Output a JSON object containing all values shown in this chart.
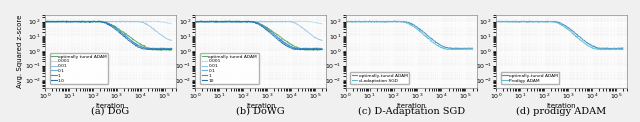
{
  "fig_width": 6.4,
  "fig_height": 1.22,
  "dpi": 100,
  "subplots": [
    {
      "title": "(a) DoG",
      "legend_entries": [
        [
          "optimally tuned ADAM",
          "#5aab6b"
        ],
        [
          "0.001",
          "#b8d9f0"
        ],
        [
          "0.01",
          "#93c5e8"
        ],
        [
          "0.1",
          "#6aadd8"
        ],
        [
          "1",
          "#4090c4"
        ],
        [
          "1.0",
          "#2070b0"
        ]
      ],
      "x_label": "Iteration",
      "y_label": "Avg. Squared z-score",
      "x_lim": [
        1,
        300000
      ],
      "y_lim": [
        0.003,
        300
      ]
    },
    {
      "title": "(b) DoWG",
      "legend_entries": [
        [
          "optimally tuned ADAM",
          "#5aab6b"
        ],
        [
          "0.001",
          "#b8d9f0"
        ],
        [
          "0.01",
          "#93c5e8"
        ],
        [
          "0.1",
          "#6aadd8"
        ],
        [
          "1",
          "#4090c4"
        ],
        [
          "10",
          "#2070b0"
        ]
      ],
      "x_label": "Iteration",
      "y_label": "Avg. Squared z-score",
      "x_lim": [
        1,
        300000
      ],
      "y_lim": [
        0.003,
        300
      ]
    },
    {
      "title": "(c) D-Adaptation SGD",
      "legend_entries": [
        [
          "optimally-tuned ADAM",
          "#4090c4"
        ],
        [
          "d-adaptation SGD",
          "#5bbccc"
        ]
      ],
      "x_label": "Iteration",
      "y_label": "Avg. Squared z-score",
      "x_lim": [
        1,
        300000
      ],
      "y_lim": [
        0.003,
        300
      ]
    },
    {
      "title": "(d) prodigy ADAM",
      "legend_entries": [
        [
          "optimally-tuned ADAM",
          "#4090c4"
        ],
        [
          "Prodigy ADAM",
          "#5bbccc"
        ]
      ],
      "x_label": "Iteration",
      "y_label": "Avg. Squared z-score",
      "x_lim": [
        1,
        300000
      ],
      "y_lim": [
        0.003,
        300
      ]
    }
  ],
  "background_color": "#f5f5f5",
  "grid_color": "#ffffff",
  "font_size": 5.0,
  "title_font_size": 7.0,
  "tick_font_size": 4.5
}
